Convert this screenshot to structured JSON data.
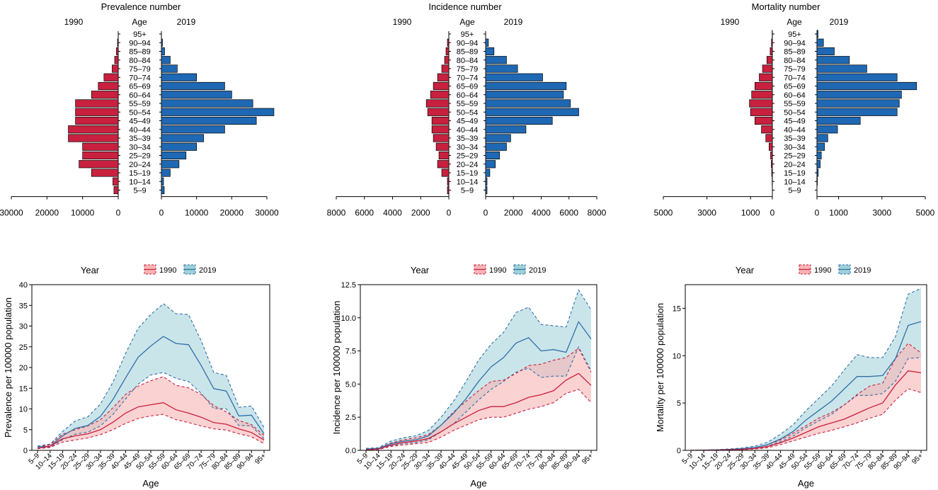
{
  "colors": {
    "c1990_bar": "#C8203E",
    "c2019_bar": "#1F68B3",
    "c1990_line": "#C8203E",
    "c1990_fill": "#F8B4B4",
    "c2019_line": "#2F6FA8",
    "c2019_fill": "#9ED0D8",
    "overlap_fill": "#C9C4BA"
  },
  "chart_data": [
    {
      "type": "bar",
      "subtype": "population-pyramid",
      "title": "Prevalence number",
      "left_label": "1990",
      "right_label": "2019",
      "age_header": "Age",
      "categories": [
        "95+",
        "90–94",
        "85–89",
        "80–84",
        "75–79",
        "70–74",
        "65–69",
        "60–64",
        "55–59",
        "50–54",
        "45–49",
        "40–44",
        "35–39",
        "30–34",
        "25–29",
        "20–24",
        "15–19",
        "10–14",
        "5–9"
      ],
      "series": [
        {
          "name": "1990",
          "values": [
            0,
            200,
            500,
            1000,
            1700,
            4000,
            5600,
            7500,
            12000,
            12000,
            12000,
            14000,
            14000,
            10000,
            10000,
            11000,
            7500,
            1500,
            1200
          ]
        },
        {
          "name": "2019",
          "values": [
            0,
            300,
            900,
            2500,
            4500,
            10000,
            18000,
            20000,
            26000,
            32000,
            27000,
            18000,
            12000,
            10000,
            7000,
            5000,
            2500,
            600,
            800
          ]
        }
      ],
      "left_xlim": [
        0,
        30000
      ],
      "right_xlim": [
        0,
        30000
      ],
      "left_ticks": [
        "30000",
        "20000",
        "10000",
        "0"
      ],
      "left_tick_values": [
        30000,
        20000,
        10000,
        0
      ],
      "right_ticks": [
        "0",
        "10000",
        "20000",
        "30000"
      ],
      "right_tick_values": [
        0,
        10000,
        20000,
        30000
      ]
    },
    {
      "type": "bar",
      "subtype": "population-pyramid",
      "title": "Incidence number",
      "left_label": "1990",
      "right_label": "2019",
      "age_header": "Age",
      "categories": [
        "95+",
        "90–94",
        "85–89",
        "80–84",
        "75–79",
        "70–74",
        "65–69",
        "60–64",
        "55–59",
        "50–54",
        "45–49",
        "40–44",
        "35–39",
        "30–34",
        "25–29",
        "20–24",
        "15–19",
        "10–14",
        "5–9"
      ],
      "series": [
        {
          "name": "1990",
          "values": [
            0,
            100,
            200,
            300,
            500,
            800,
            1100,
            1300,
            1600,
            1500,
            1200,
            1200,
            1100,
            900,
            700,
            800,
            500,
            100,
            100
          ]
        },
        {
          "name": "2019",
          "values": [
            0,
            200,
            600,
            1500,
            2300,
            4100,
            5800,
            5600,
            6100,
            6700,
            4800,
            2900,
            1800,
            1500,
            1000,
            700,
            300,
            100,
            100
          ]
        }
      ],
      "left_xlim": [
        0,
        8000
      ],
      "right_xlim": [
        0,
        8000
      ],
      "left_ticks": [
        "8000",
        "6000",
        "4000",
        "2000",
        "0"
      ],
      "left_tick_values": [
        8000,
        6000,
        4000,
        2000,
        0
      ],
      "right_ticks": [
        "0",
        "2000",
        "4000",
        "6000",
        "8000"
      ],
      "right_tick_values": [
        0,
        2000,
        4000,
        6000,
        8000
      ]
    },
    {
      "type": "bar",
      "subtype": "population-pyramid",
      "title": "Mortality number",
      "left_label": "1990",
      "right_label": "2019",
      "age_header": "Age",
      "categories": [
        "95+",
        "90–94",
        "85–89",
        "80–84",
        "75–79",
        "70–74",
        "65–69",
        "60–64",
        "55–59",
        "50–54",
        "45–49",
        "40–44",
        "35–39",
        "30–34",
        "25–29",
        "20–24",
        "15–19",
        "10–14",
        "5–9"
      ],
      "series": [
        {
          "name": "1990",
          "values": [
            10,
            40,
            100,
            250,
            450,
            600,
            800,
            950,
            1050,
            1000,
            800,
            500,
            300,
            150,
            80,
            50,
            30,
            10,
            0
          ]
        },
        {
          "name": "2019",
          "values": [
            50,
            300,
            800,
            1500,
            2300,
            3700,
            4600,
            3900,
            3800,
            3700,
            2000,
            950,
            500,
            350,
            200,
            150,
            60,
            20,
            0
          ]
        }
      ],
      "left_xlim": [
        0,
        5000
      ],
      "right_xlim": [
        0,
        5000
      ],
      "left_ticks": [
        "5000",
        "3000",
        "1000",
        "0"
      ],
      "left_tick_values": [
        5000,
        3000,
        1000,
        0
      ],
      "right_ticks": [
        "0",
        "1000",
        "3000",
        "5000"
      ],
      "right_tick_values": [
        0,
        1000,
        3000,
        5000
      ]
    },
    {
      "type": "area",
      "legend_title": "Year",
      "legend_labels": [
        "1990",
        "2019"
      ],
      "xlabel": "Age",
      "ylabel": "Prevalence per 100000 population",
      "categories": [
        "5–9",
        "10–14",
        "15–19",
        "20–24",
        "25–29",
        "30–34",
        "35–39",
        "40–44",
        "45–49",
        "50–54",
        "55–59",
        "60–64",
        "65–69",
        "70–74",
        "75–79",
        "80–84",
        "85–89",
        "90–94",
        "95+"
      ],
      "ylim": [
        0,
        40
      ],
      "yticks": [
        "0",
        "5",
        "10",
        "15",
        "20",
        "25",
        "30",
        "35",
        "40"
      ],
      "ytick_values": [
        0,
        5,
        10,
        15,
        20,
        25,
        30,
        35,
        40
      ],
      "series": [
        {
          "name": "1990",
          "values": [
            0.5,
            1.0,
            2.8,
            3.5,
            4.0,
            5.0,
            6.8,
            9.0,
            10.5,
            11.0,
            11.5,
            9.8,
            9.0,
            8.0,
            6.7,
            6.3,
            5.2,
            4.3,
            2.5
          ],
          "lower": [
            0.4,
            0.7,
            2.0,
            2.5,
            3.0,
            3.8,
            5.0,
            6.5,
            7.7,
            8.3,
            8.7,
            7.4,
            6.7,
            5.9,
            5.2,
            4.9,
            4.0,
            3.3,
            1.6
          ],
          "upper": [
            0.8,
            1.4,
            3.9,
            5.0,
            5.9,
            7.4,
            10.3,
            13.5,
            15.5,
            16.8,
            17.8,
            15.7,
            15.1,
            13.5,
            10.8,
            9.3,
            7.2,
            6.2,
            3.6
          ]
        },
        {
          "name": "2019",
          "values": [
            0.8,
            1.0,
            3.5,
            5.3,
            6.0,
            8.2,
            12.3,
            17.5,
            22.5,
            25.2,
            27.5,
            25.8,
            25.5,
            20.5,
            14.9,
            14.3,
            8.3,
            8.5,
            4.0
          ],
          "lower": [
            0.5,
            0.8,
            2.6,
            3.9,
            4.4,
            5.9,
            8.7,
            12.4,
            16.0,
            18.2,
            18.8,
            17.4,
            16.6,
            13.8,
            10.1,
            10.0,
            6.0,
            5.9,
            2.8
          ],
          "upper": [
            1.0,
            1.5,
            4.6,
            7.1,
            8.1,
            11.2,
            16.5,
            23.4,
            29.5,
            32.8,
            35.4,
            33.0,
            32.8,
            26.5,
            18.8,
            18.1,
            10.4,
            10.7,
            5.5
          ]
        }
      ]
    },
    {
      "type": "area",
      "legend_title": "Year",
      "legend_labels": [
        "1990",
        "2019"
      ],
      "xlabel": "Age",
      "ylabel": "Incidence per 100000 population",
      "categories": [
        "5–9",
        "10–14",
        "15–19",
        "20–24",
        "25–29",
        "30–34",
        "35–39",
        "40–44",
        "45–49",
        "50–54",
        "55–59",
        "60–64",
        "65–69",
        "70–74",
        "75–79",
        "80–84",
        "85–89",
        "90–94",
        "95+"
      ],
      "ylim": [
        0,
        12.5
      ],
      "yticks": [
        "0.0",
        "2.5",
        "5.0",
        "7.5",
        "10.0",
        "12.5"
      ],
      "ytick_values": [
        0,
        2.5,
        5,
        7.5,
        10,
        12.5
      ],
      "series": [
        {
          "name": "1990",
          "values": [
            0.05,
            0.1,
            0.4,
            0.6,
            0.7,
            0.9,
            1.4,
            2.0,
            2.5,
            3.0,
            3.3,
            3.3,
            3.6,
            4.0,
            4.2,
            4.5,
            5.3,
            5.8,
            4.9
          ],
          "lower": [
            0.03,
            0.07,
            0.3,
            0.4,
            0.5,
            0.6,
            1.0,
            1.5,
            1.9,
            2.3,
            2.5,
            2.5,
            2.8,
            3.1,
            3.3,
            3.6,
            4.3,
            4.6,
            3.6
          ],
          "upper": [
            0.08,
            0.15,
            0.55,
            0.8,
            0.95,
            1.2,
            1.9,
            2.9,
            3.7,
            4.5,
            5.2,
            5.3,
            5.8,
            6.4,
            6.5,
            6.8,
            7.0,
            7.7,
            5.9
          ]
        },
        {
          "name": "2019",
          "values": [
            0.1,
            0.15,
            0.5,
            0.7,
            0.8,
            1.1,
            1.9,
            2.8,
            3.9,
            5.2,
            6.3,
            7.0,
            8.1,
            8.5,
            7.5,
            7.6,
            7.4,
            9.7,
            8.4
          ],
          "lower": [
            0.07,
            0.1,
            0.35,
            0.5,
            0.6,
            0.8,
            1.4,
            2.0,
            2.9,
            3.8,
            4.6,
            5.2,
            5.9,
            6.2,
            5.5,
            5.6,
            5.6,
            7.8,
            6.0
          ],
          "upper": [
            0.15,
            0.2,
            0.7,
            0.95,
            1.1,
            1.5,
            2.5,
            3.7,
            5.2,
            6.8,
            8.0,
            8.9,
            10.4,
            10.8,
            9.5,
            9.4,
            9.3,
            12.1,
            10.6
          ]
        }
      ]
    },
    {
      "type": "area",
      "legend_title": "Year",
      "legend_labels": [
        "1990",
        "2019"
      ],
      "xlabel": "Age",
      "ylabel": "Mortality per 100000 population",
      "categories": [
        "5–9",
        "10–14",
        "15–19",
        "20–24",
        "25–29",
        "30–34",
        "35–39",
        "40–44",
        "45–49",
        "50–54",
        "55–59",
        "60–64",
        "65–69",
        "70–74",
        "75–79",
        "80–84",
        "85–89",
        "90–94",
        "95+"
      ],
      "ylim": [
        0,
        17.5
      ],
      "yticks": [
        "0",
        "5",
        "10",
        "15"
      ],
      "ytick_values": [
        0,
        5,
        10,
        15
      ],
      "series": [
        {
          "name": "1990",
          "values": [
            0.0,
            0.01,
            0.03,
            0.06,
            0.1,
            0.2,
            0.4,
            0.8,
            1.3,
            1.9,
            2.5,
            2.9,
            3.3,
            3.9,
            4.5,
            5.0,
            6.9,
            8.4,
            8.2
          ],
          "lower": [
            0.0,
            0.01,
            0.02,
            0.04,
            0.07,
            0.14,
            0.28,
            0.6,
            1.0,
            1.4,
            1.8,
            2.1,
            2.5,
            2.9,
            3.4,
            3.8,
            5.3,
            6.5,
            6.1
          ],
          "upper": [
            0.0,
            0.02,
            0.04,
            0.09,
            0.15,
            0.3,
            0.6,
            1.1,
            1.8,
            2.6,
            3.4,
            4.0,
            4.8,
            5.9,
            6.8,
            7.1,
            9.7,
            11.3,
            10.3
          ]
        },
        {
          "name": "2019",
          "values": [
            0.0,
            0.02,
            0.05,
            0.1,
            0.18,
            0.3,
            0.6,
            1.2,
            2.0,
            3.2,
            4.2,
            5.2,
            6.5,
            7.8,
            7.8,
            7.9,
            9.7,
            13.2,
            13.6
          ],
          "lower": [
            0.0,
            0.01,
            0.03,
            0.07,
            0.12,
            0.2,
            0.45,
            0.9,
            1.5,
            2.4,
            3.1,
            3.8,
            4.8,
            5.8,
            5.8,
            6.0,
            7.3,
            9.7,
            9.8
          ],
          "upper": [
            0.0,
            0.03,
            0.07,
            0.15,
            0.25,
            0.45,
            0.85,
            1.7,
            2.7,
            4.2,
            5.5,
            6.8,
            8.5,
            10.1,
            9.8,
            9.8,
            12.0,
            16.5,
            17.1
          ]
        }
      ]
    }
  ]
}
